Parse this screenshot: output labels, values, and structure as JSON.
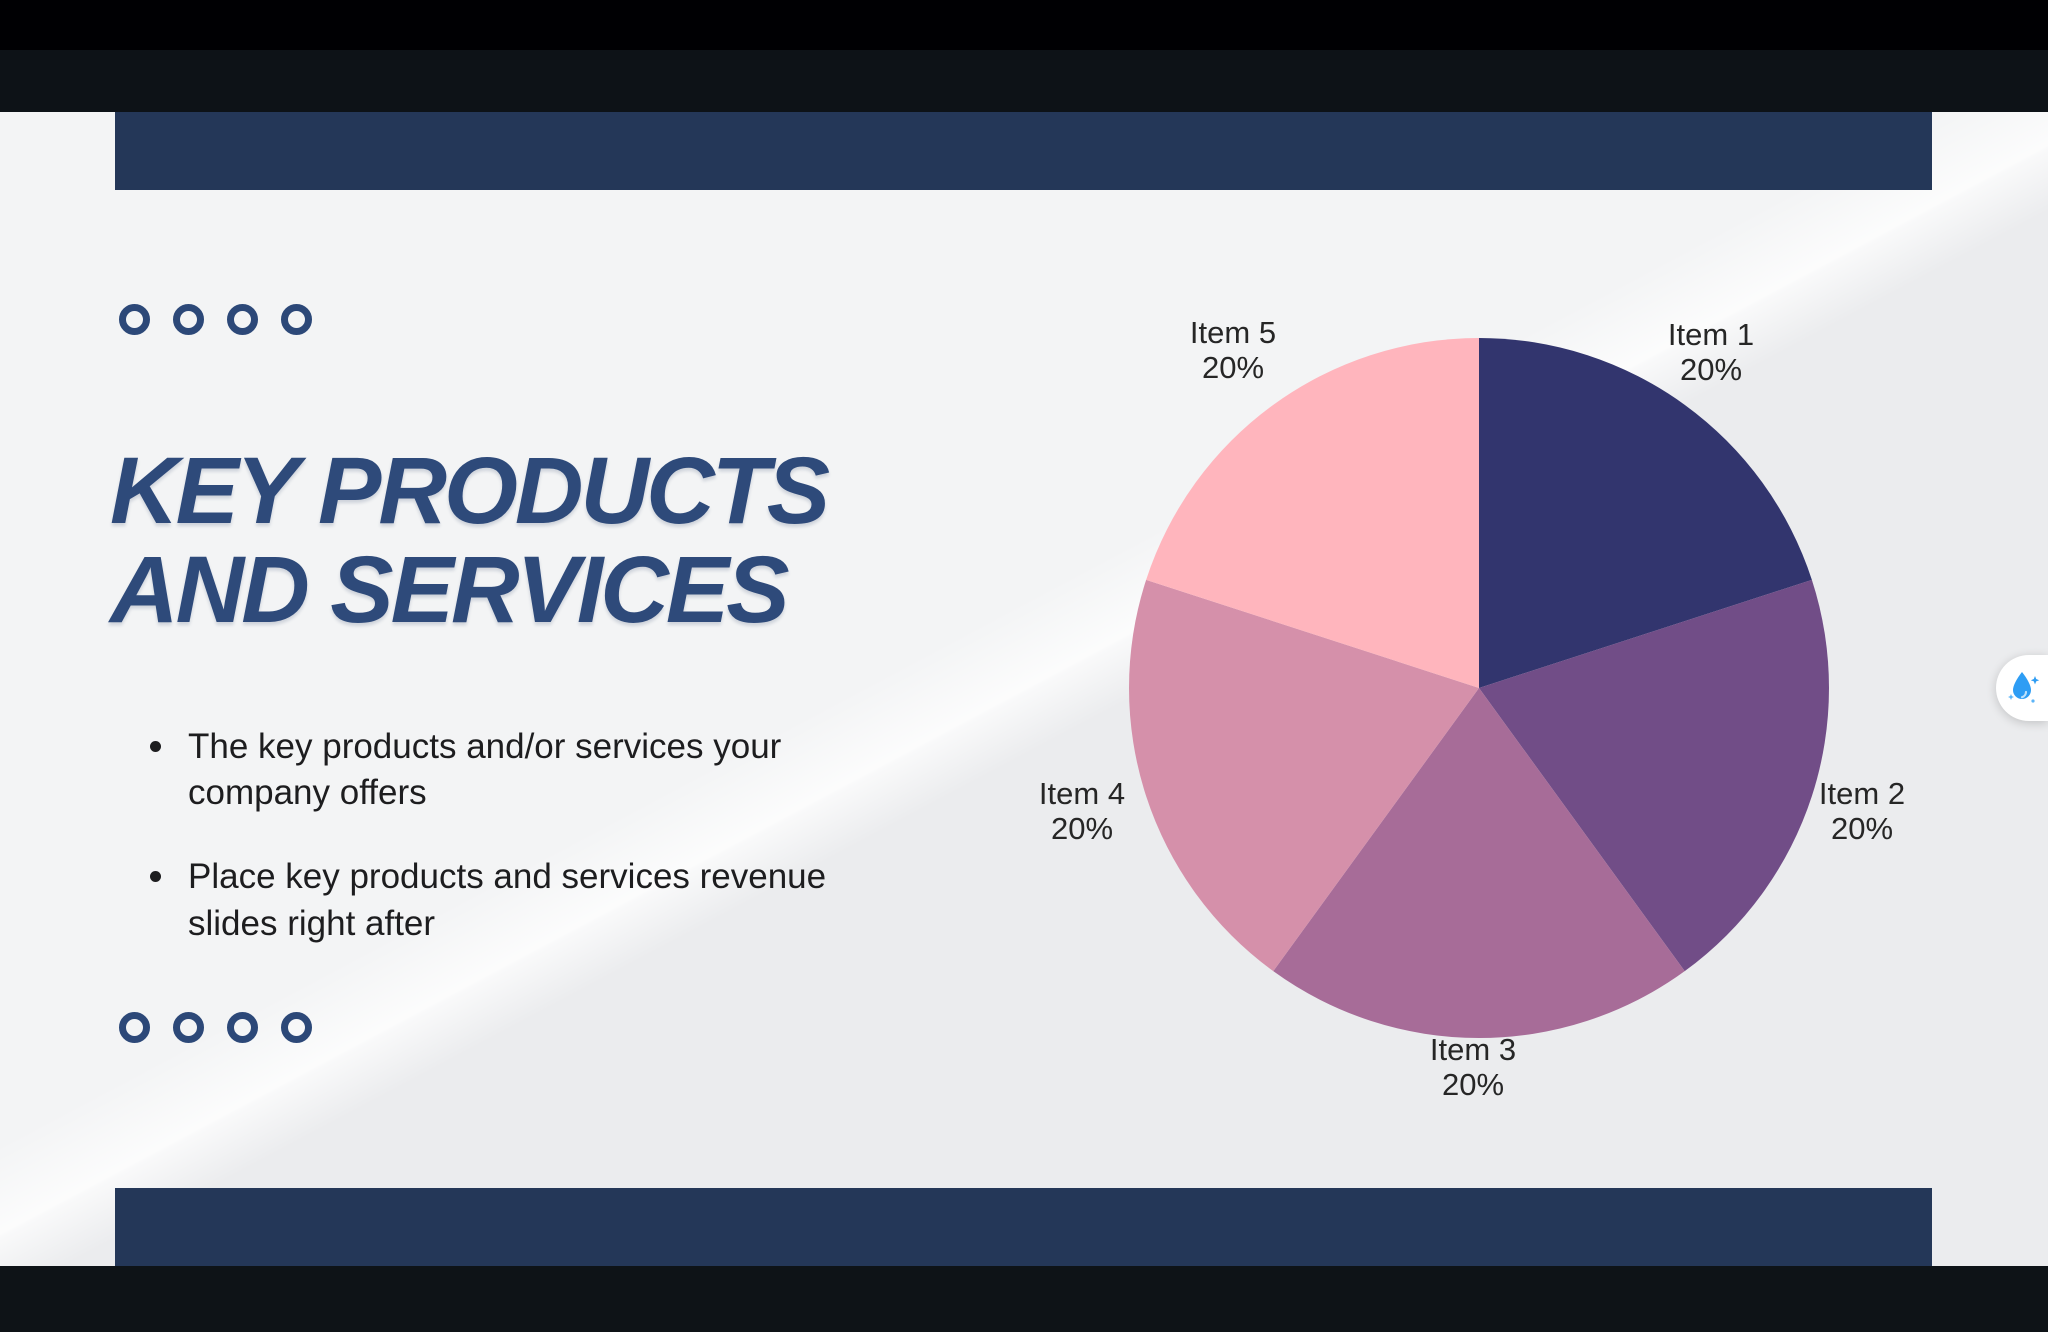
{
  "slide": {
    "title_line1": "KEY PRODUCTS",
    "title_line2": "AND SERVICES",
    "bullets": [
      "The key products and/or services your company offers",
      "Place key products and services revenue slides right after"
    ]
  },
  "chart_data": {
    "type": "pie",
    "labels": [
      "Item 1",
      "Item 2",
      "Item 3",
      "Item 4",
      "Item 5"
    ],
    "values": [
      20,
      20,
      20,
      20,
      20
    ],
    "value_labels": [
      "20%",
      "20%",
      "20%",
      "20%",
      "20%"
    ],
    "colors": [
      "#32356e",
      "#714d87",
      "#a76c98",
      "#d590aa",
      "#ffb5bd"
    ],
    "start_angle_deg": 0,
    "direction": "clockwise",
    "title": "",
    "legend": "none",
    "label_position": "outside"
  },
  "colors": {
    "bar_navy": "#243758",
    "accent_navy": "#2c4878",
    "title_navy": "#2e4a7a",
    "slide_bg_light": "#f3f4f5",
    "slide_bg_shade": "#ebecee",
    "frame_dark": "#0d1217",
    "assistant_blue": "#2e9df4"
  },
  "icons": {
    "decor_ring": "ring-icon",
    "assistant": "water-drop-sparkles-icon"
  }
}
